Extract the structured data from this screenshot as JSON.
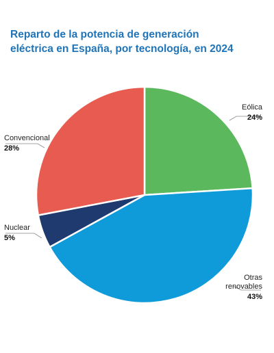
{
  "chart_data": {
    "type": "pie",
    "title_lines": [
      "Reparto de la potencia de generación",
      "eléctrica en España, por tecnología, en 2024"
    ],
    "slices": [
      {
        "label": [
          "Eólica"
        ],
        "value": 24,
        "value_label": "24%",
        "color": "#5cb85c"
      },
      {
        "label": [
          "Otras",
          "renovables"
        ],
        "value": 43,
        "value_label": "43%",
        "color": "#0f9ad9"
      },
      {
        "label": [
          "Nuclear"
        ],
        "value": 5,
        "value_label": "5%",
        "color": "#1e3a6e"
      },
      {
        "label": [
          "Convencional"
        ],
        "value": 28,
        "value_label": "28%",
        "color": "#e85b50"
      }
    ],
    "start_angle_deg": 0,
    "direction": "clockwise",
    "label_leader_color": "#888888"
  }
}
